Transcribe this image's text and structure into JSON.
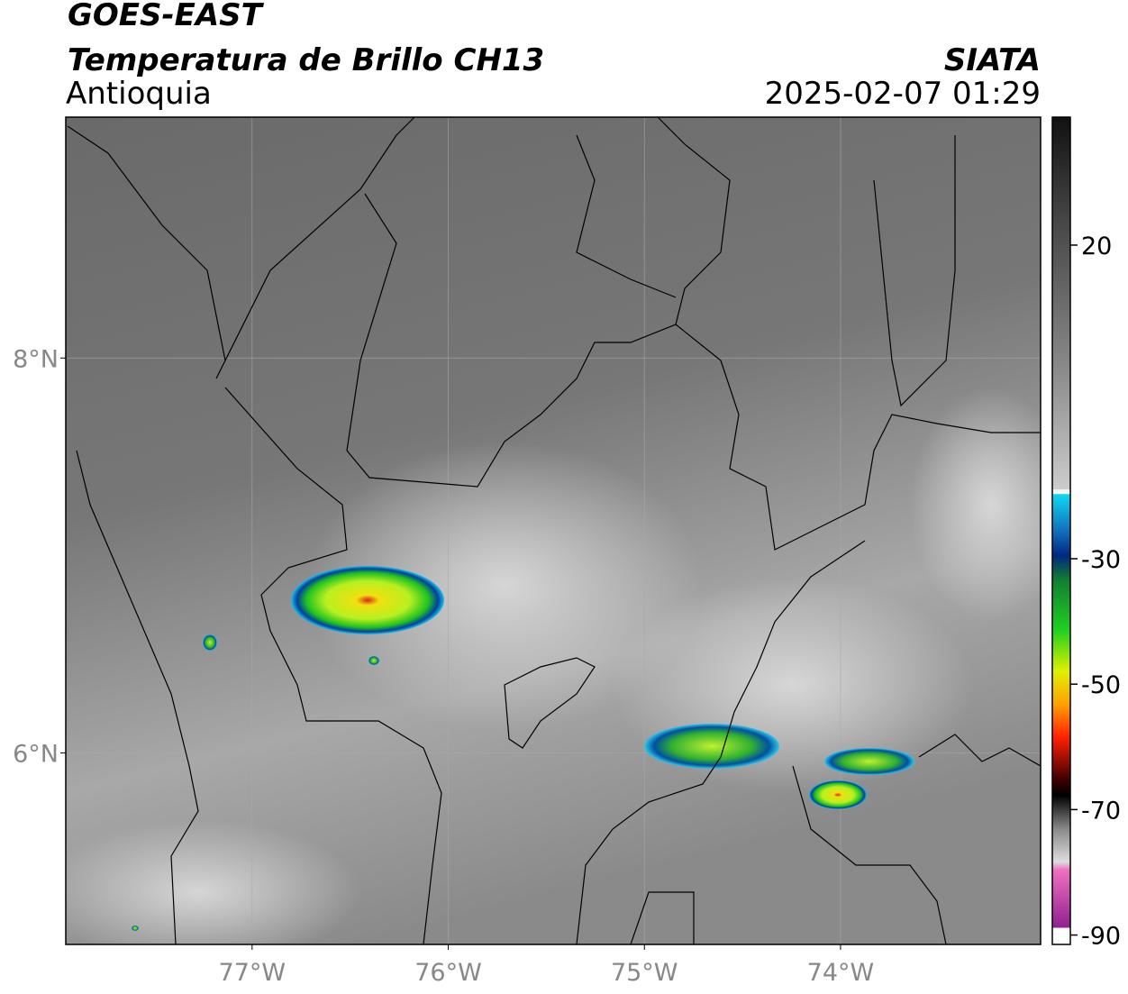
{
  "header": {
    "title": "GOES-EAST",
    "subtitle": "Temperatura de Brillo CH13",
    "region": "Antioquia",
    "source": "SIATA",
    "timestamp": "2025-02-07 01:29"
  },
  "map": {
    "xlim": [
      -77.95,
      -72.98
    ],
    "ylim": [
      5.03,
      9.22
    ],
    "xticks": [
      {
        "value": -77,
        "label": "77°W"
      },
      {
        "value": -76,
        "label": "76°W"
      },
      {
        "value": -75,
        "label": "75°W"
      },
      {
        "value": -74,
        "label": "74°W"
      }
    ],
    "yticks": [
      {
        "value": 6,
        "label": "6°N"
      },
      {
        "value": 8,
        "label": "8°N"
      }
    ],
    "grid": true
  },
  "colorbar": {
    "lim": [
      -91.5,
      40.4
    ],
    "ticks": [
      20,
      -30,
      -50,
      -70,
      -90
    ]
  }
}
